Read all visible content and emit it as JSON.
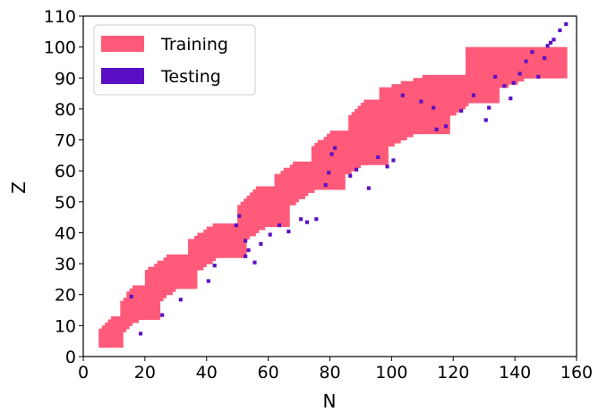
{
  "colors": {
    "training": "#ff5a7a",
    "testing": "#5b0fc4"
  },
  "chart_data": {
    "type": "heatmap",
    "xlabel": "N",
    "ylabel": "Z",
    "xlim": [
      0,
      160
    ],
    "ylim": [
      0,
      110
    ],
    "xticks": [
      "0",
      "20",
      "40",
      "60",
      "80",
      "100",
      "120",
      "140",
      "160"
    ],
    "yticks": [
      "0",
      "10",
      "20",
      "30",
      "40",
      "50",
      "60",
      "70",
      "80",
      "90",
      "100",
      "110"
    ],
    "grid": false,
    "legend_position": "top-left",
    "series": [
      {
        "name": "Training",
        "color": "#ff5a7a",
        "bands": [
          {
            "z_min": 3,
            "z_max": 12,
            "n_min": 5,
            "n_max": 12
          },
          {
            "z_min": 12,
            "z_max": 22,
            "n_min": 12,
            "n_max": 24
          },
          {
            "z_min": 22,
            "z_max": 32,
            "n_min": 20,
            "n_max": 36
          },
          {
            "z_min": 32,
            "z_max": 42,
            "n_min": 34,
            "n_max": 52
          },
          {
            "z_min": 42,
            "z_max": 54,
            "n_min": 50,
            "n_max": 66
          },
          {
            "z_min": 54,
            "z_max": 62,
            "n_min": 62,
            "n_max": 84
          },
          {
            "z_min": 62,
            "z_max": 72,
            "n_min": 74,
            "n_max": 98
          },
          {
            "z_min": 72,
            "z_max": 82,
            "n_min": 86,
            "n_max": 118
          },
          {
            "z_min": 82,
            "z_max": 90,
            "n_min": 96,
            "n_max": 134
          },
          {
            "z_min": 90,
            "z_max": 99,
            "n_min": 124,
            "n_max": 156
          }
        ]
      },
      {
        "name": "Testing",
        "color": "#5b0fc4",
        "points": [
          [
            15,
            19
          ],
          [
            18,
            7
          ],
          [
            25,
            13
          ],
          [
            31,
            18
          ],
          [
            40,
            24
          ],
          [
            42,
            29
          ],
          [
            49,
            42
          ],
          [
            50,
            45
          ],
          [
            52,
            37
          ],
          [
            52,
            32
          ],
          [
            53,
            34
          ],
          [
            55,
            30
          ],
          [
            57,
            36
          ],
          [
            60,
            39
          ],
          [
            63,
            42
          ],
          [
            66,
            40
          ],
          [
            70,
            44
          ],
          [
            72,
            43
          ],
          [
            75,
            44
          ],
          [
            78,
            55
          ],
          [
            79,
            59
          ],
          [
            80,
            65
          ],
          [
            81,
            67
          ],
          [
            86,
            58
          ],
          [
            88,
            60
          ],
          [
            92,
            54
          ],
          [
            95,
            64
          ],
          [
            98,
            61
          ],
          [
            100,
            63
          ],
          [
            103,
            84
          ],
          [
            109,
            82
          ],
          [
            113,
            80
          ],
          [
            114,
            73
          ],
          [
            117,
            74
          ],
          [
            122,
            79
          ],
          [
            126,
            84
          ],
          [
            130,
            76
          ],
          [
            131,
            80
          ],
          [
            133,
            90
          ],
          [
            136,
            87
          ],
          [
            138,
            83
          ],
          [
            139,
            88
          ],
          [
            141,
            91
          ],
          [
            143,
            95
          ],
          [
            145,
            98
          ],
          [
            147,
            90
          ],
          [
            149,
            96
          ],
          [
            150,
            100
          ],
          [
            151,
            101
          ],
          [
            152,
            102
          ],
          [
            154,
            105
          ],
          [
            156,
            107
          ]
        ]
      }
    ]
  }
}
